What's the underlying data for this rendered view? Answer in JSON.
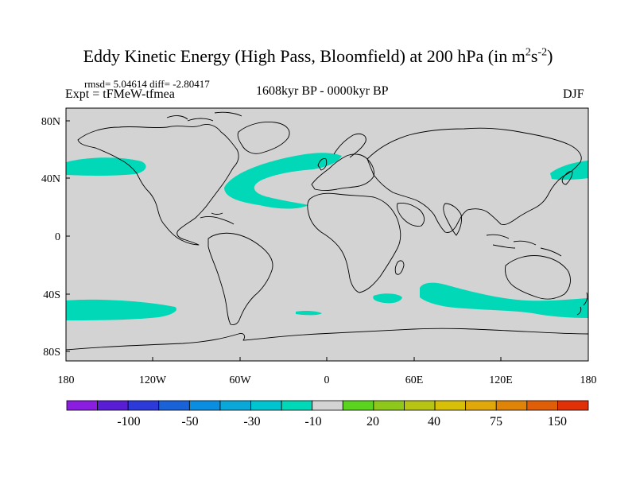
{
  "title": {
    "text": "Eddy Kinetic Energy (High Pass, Bloomfield) at 200 hPa (in m",
    "unit_base": "s",
    "sup1": "2",
    "sup2": "-2",
    "close": ")"
  },
  "stats": "rmsd= 5.04614 diff= -2.80417",
  "expt": "Expt = tFMeW-tfmea",
  "period": "1608kyr BP - 0000kyr BP",
  "season": "DJF",
  "axes": {
    "lat_labels": [
      "80N",
      "40N",
      "0",
      "40S",
      "80S"
    ],
    "lon_labels": [
      "180",
      "120W",
      "60W",
      "0",
      "60E",
      "120E",
      "180"
    ]
  },
  "colors": {
    "land_bg": "#d3d3d3",
    "anomaly_fill": "#00d8b8",
    "coastline": "#000000"
  },
  "colorbar": {
    "colors": [
      "#8a1de0",
      "#5a1dd6",
      "#2b3ad8",
      "#1a62d8",
      "#0a8ee0",
      "#0aa8d8",
      "#00c4d0",
      "#00d8b8",
      "#d3d3d3",
      "#5ad41e",
      "#8ec81a",
      "#b8c414",
      "#d8c008",
      "#e0a808",
      "#e08408",
      "#e05e08",
      "#e03008"
    ],
    "labels": [
      "-100",
      "-50",
      "-30",
      "-10",
      "20",
      "40",
      "75",
      "150"
    ]
  }
}
